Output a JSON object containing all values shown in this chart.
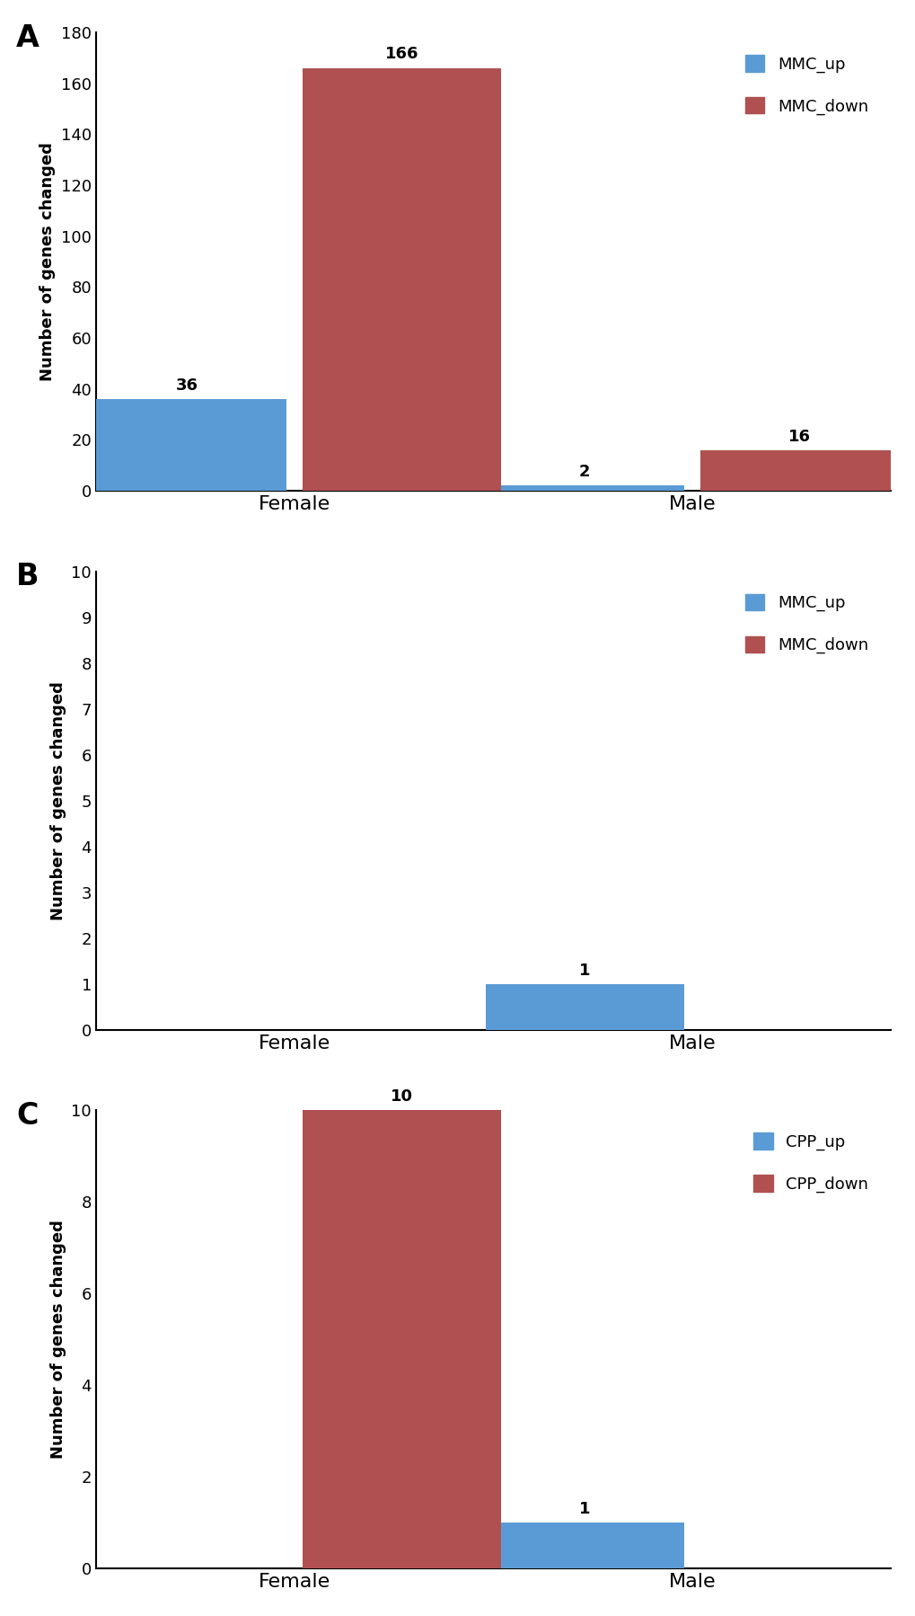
{
  "panel_A": {
    "label": "A",
    "categories": [
      "Female",
      "Male"
    ],
    "up_values": [
      36,
      2
    ],
    "down_values": [
      166,
      16
    ],
    "up_color": "#5b9bd5",
    "down_color": "#b05050",
    "ylabel": "Number of genes changed",
    "ylim": [
      0,
      180
    ],
    "yticks": [
      0,
      20,
      40,
      60,
      80,
      100,
      120,
      140,
      160,
      180
    ],
    "legend_up": "MMC_up",
    "legend_down": "MMC_down"
  },
  "panel_B": {
    "label": "B",
    "categories": [
      "Female",
      "Male"
    ],
    "up_values": [
      0,
      1
    ],
    "down_values": [
      0,
      0
    ],
    "up_color": "#5b9bd5",
    "down_color": "#b05050",
    "ylabel": "Number of genes changed",
    "ylim": [
      0,
      10
    ],
    "yticks": [
      0,
      1,
      2,
      3,
      4,
      5,
      6,
      7,
      8,
      9,
      10
    ],
    "legend_up": "MMC_up",
    "legend_down": "MMC_down"
  },
  "panel_C": {
    "label": "C",
    "categories": [
      "Female",
      "Male"
    ],
    "up_values": [
      0,
      1
    ],
    "down_values": [
      10,
      0
    ],
    "up_color": "#5b9bd5",
    "down_color": "#b05050",
    "ylabel": "Number of genes changed",
    "ylim": [
      0,
      10
    ],
    "yticks": [
      0,
      2,
      4,
      6,
      8,
      10
    ],
    "legend_up": "CPP_up",
    "legend_down": "CPP_down"
  },
  "background_color": "#ffffff",
  "bar_width": 0.25,
  "group_positions": [
    0.25,
    0.75
  ],
  "xlim": [
    0.0,
    1.0
  ],
  "label_fontsize": 16,
  "tick_fontsize": 13,
  "ylabel_fontsize": 13,
  "annot_fontsize": 13,
  "legend_fontsize": 13,
  "panel_label_fontsize": 24
}
